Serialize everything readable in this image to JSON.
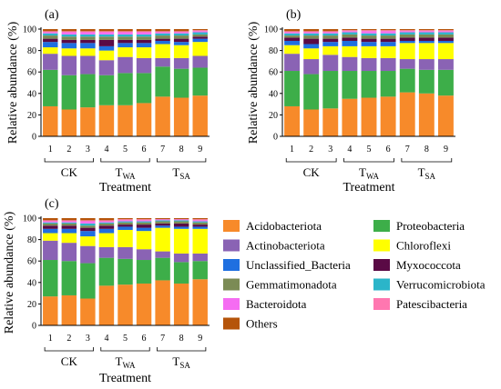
{
  "colors": {
    "Acidobacteriota": "#F78A2A",
    "Proteobacteria": "#3DAE49",
    "Actinobacteriota": "#8A63B4",
    "Chloroflexi": "#FFFF00",
    "Unclassified_Bacteria": "#1F6FE0",
    "Myxococcota": "#5A0A45",
    "Gemmatimonadota": "#7B8B55",
    "Verrucomicrobiota": "#2BB5C9",
    "Bacteroidota": "#F56CF2",
    "Patescibacteria": "#FF77B0",
    "Others": "#B5540A"
  },
  "legend": {
    "items": [
      "Acidobacteriota",
      "Proteobacteria",
      "Actinobacteriota",
      "Chloroflexi",
      "Unclassified_Bacteria",
      "Myxococcota",
      "Gemmatimonadota",
      "Verrucomicrobiota",
      "Bacteroidota",
      "Patescibacteria",
      "Others"
    ]
  },
  "chart_data": [
    {
      "type": "bar",
      "stacked": true,
      "panel": "(a)",
      "ylabel": "Relative abundance (%)",
      "xlabel": "Treatment",
      "ylim": [
        0,
        100
      ],
      "yticks": [
        0,
        20,
        40,
        60,
        80,
        100
      ],
      "categories": [
        "1",
        "2",
        "3",
        "4",
        "5",
        "6",
        "7",
        "8",
        "9"
      ],
      "groups": [
        {
          "label": "CK",
          "sub": ""
        },
        {
          "label": "T",
          "sub": "WA"
        },
        {
          "label": "T",
          "sub": "SA"
        }
      ],
      "series": [
        {
          "name": "Acidobacteriota",
          "values": [
            28,
            25,
            27,
            29,
            29,
            31,
            37,
            36,
            38
          ]
        },
        {
          "name": "Proteobacteria",
          "values": [
            34,
            32,
            31,
            28,
            30,
            28,
            28,
            27,
            26
          ]
        },
        {
          "name": "Actinobacteriota",
          "values": [
            15,
            18,
            17,
            14,
            15,
            14,
            8,
            10,
            11
          ]
        },
        {
          "name": "Chloroflexi",
          "values": [
            6,
            7,
            7,
            9,
            9,
            10,
            13,
            12,
            13
          ]
        },
        {
          "name": "Unclassified_Bacteria",
          "values": [
            5,
            5,
            5,
            4,
            4,
            4,
            3,
            3,
            3
          ]
        },
        {
          "name": "Myxococcota",
          "values": [
            3,
            3,
            3,
            6,
            3,
            3,
            2,
            3,
            2
          ]
        },
        {
          "name": "Gemmatimonadota",
          "values": [
            3,
            3,
            3,
            3,
            3,
            3,
            3,
            3,
            2
          ]
        },
        {
          "name": "Verrucomicrobiota",
          "values": [
            2,
            2,
            2,
            2,
            2,
            2,
            2,
            2,
            2
          ]
        },
        {
          "name": "Bacteroidota",
          "values": [
            1,
            2,
            2,
            2,
            2,
            2,
            1,
            1,
            1
          ]
        },
        {
          "name": "Patescibacteria",
          "values": [
            1,
            1,
            1,
            1,
            1,
            1,
            1,
            1,
            1
          ]
        },
        {
          "name": "Others",
          "values": [
            2,
            2,
            2,
            2,
            2,
            2,
            2,
            2,
            1
          ]
        }
      ]
    },
    {
      "type": "bar",
      "stacked": true,
      "panel": "(b)",
      "ylabel": "Relative abundance (%)",
      "xlabel": "Treatment",
      "ylim": [
        0,
        100
      ],
      "yticks": [
        0,
        20,
        40,
        60,
        80,
        100
      ],
      "categories": [
        "1",
        "2",
        "3",
        "4",
        "5",
        "6",
        "7",
        "8",
        "9"
      ],
      "groups": [
        {
          "label": "CK",
          "sub": ""
        },
        {
          "label": "T",
          "sub": "WA"
        },
        {
          "label": "T",
          "sub": "SA"
        }
      ],
      "series": [
        {
          "name": "Acidobacteriota",
          "values": [
            28,
            25,
            26,
            35,
            36,
            37,
            41,
            40,
            38
          ]
        },
        {
          "name": "Proteobacteria",
          "values": [
            33,
            33,
            35,
            26,
            25,
            24,
            22,
            22,
            24
          ]
        },
        {
          "name": "Actinobacteriota",
          "values": [
            16,
            14,
            15,
            13,
            12,
            12,
            9,
            10,
            10
          ]
        },
        {
          "name": "Chloroflexi",
          "values": [
            8,
            10,
            8,
            10,
            11,
            11,
            15,
            15,
            15
          ]
        },
        {
          "name": "Unclassified_Bacteria",
          "values": [
            4,
            4,
            4,
            5,
            4,
            4,
            2,
            2,
            2
          ]
        },
        {
          "name": "Myxococcota",
          "values": [
            3,
            5,
            3,
            3,
            3,
            3,
            3,
            3,
            3
          ]
        },
        {
          "name": "Gemmatimonadota",
          "values": [
            2,
            3,
            3,
            3,
            3,
            3,
            3,
            3,
            3
          ]
        },
        {
          "name": "Verrucomicrobiota",
          "values": [
            2,
            2,
            2,
            2,
            2,
            2,
            2,
            2,
            2
          ]
        },
        {
          "name": "Bacteroidota",
          "values": [
            1,
            1,
            1,
            1,
            2,
            2,
            1,
            1,
            1
          ]
        },
        {
          "name": "Patescibacteria",
          "values": [
            1,
            1,
            1,
            1,
            1,
            1,
            1,
            1,
            1
          ]
        },
        {
          "name": "Others",
          "values": [
            2,
            2,
            2,
            1,
            1,
            1,
            1,
            1,
            1
          ]
        }
      ]
    },
    {
      "type": "bar",
      "stacked": true,
      "panel": "(c)",
      "ylabel": "Relative abundance (%)",
      "xlabel": "Treatment",
      "ylim": [
        0,
        100
      ],
      "yticks": [
        0,
        20,
        40,
        60,
        80,
        100
      ],
      "categories": [
        "1",
        "2",
        "3",
        "4",
        "5",
        "6",
        "7",
        "8",
        "9"
      ],
      "groups": [
        {
          "label": "CK",
          "sub": ""
        },
        {
          "label": "T",
          "sub": "WA"
        },
        {
          "label": "T",
          "sub": "SA"
        }
      ],
      "series": [
        {
          "name": "Acidobacteriota",
          "values": [
            27,
            28,
            25,
            37,
            38,
            39,
            42,
            39,
            43
          ]
        },
        {
          "name": "Proteobacteria",
          "values": [
            34,
            32,
            33,
            26,
            24,
            22,
            21,
            20,
            17
          ]
        },
        {
          "name": "Actinobacteriota",
          "values": [
            18,
            17,
            16,
            10,
            11,
            10,
            6,
            8,
            7
          ]
        },
        {
          "name": "Chloroflexi",
          "values": [
            7,
            9,
            9,
            13,
            16,
            17,
            22,
            23,
            23
          ]
        },
        {
          "name": "Unclassified_Bacteria",
          "values": [
            4,
            4,
            5,
            4,
            3,
            3,
            2,
            2,
            2
          ]
        },
        {
          "name": "Myxococcota",
          "values": [
            3,
            3,
            3,
            3,
            2,
            3,
            2,
            3,
            2
          ]
        },
        {
          "name": "Gemmatimonadota",
          "values": [
            2,
            2,
            2,
            2,
            2,
            2,
            2,
            2,
            2
          ]
        },
        {
          "name": "Verrucomicrobiota",
          "values": [
            1,
            1,
            2,
            1,
            1,
            1,
            1,
            1,
            1
          ]
        },
        {
          "name": "Bacteroidota",
          "values": [
            1,
            1,
            2,
            1,
            1,
            1,
            1,
            1,
            1
          ]
        },
        {
          "name": "Patescibacteria",
          "values": [
            1,
            1,
            1,
            1,
            1,
            1,
            0,
            0,
            1
          ]
        },
        {
          "name": "Others",
          "values": [
            2,
            2,
            2,
            2,
            1,
            1,
            1,
            1,
            1
          ]
        }
      ]
    }
  ]
}
